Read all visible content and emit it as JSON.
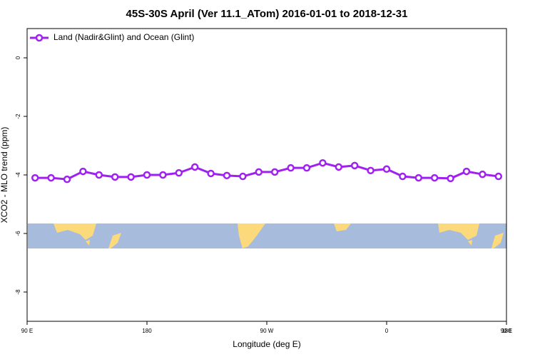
{
  "chart_data": {
    "type": "line",
    "title": "45S-30S April (Ver 11.1_ATom)   2016-01-01 to 2018-12-31",
    "x_label": "Longitude (deg E)",
    "y_label": "XCO2 - MLO trend (ppm)",
    "x": [
      96,
      108,
      120,
      132,
      144,
      156,
      168,
      180,
      192,
      204,
      216,
      228,
      240,
      252,
      264,
      276,
      288,
      300,
      312,
      324,
      336,
      348,
      360,
      372,
      384,
      396,
      408,
      420,
      432,
      444
    ],
    "series": [
      {
        "name": "Land (Nadir&Glint) and Ocean (Glint)",
        "color": "#a020f0",
        "values": [
          -4.1,
          -4.1,
          -4.15,
          -3.88,
          -4.0,
          -4.07,
          -4.07,
          -4.0,
          -4.0,
          -3.93,
          -3.73,
          -3.95,
          -4.02,
          -4.05,
          -3.9,
          -3.9,
          -3.76,
          -3.76,
          -3.59,
          -3.73,
          -3.68,
          -3.85,
          -3.8,
          -4.05,
          -4.1,
          -4.1,
          -4.12,
          -3.88,
          -3.98,
          -4.05
        ]
      }
    ],
    "xlim": [
      90,
      450
    ],
    "ylim": [
      -9,
      1
    ],
    "xticks": [
      {
        "value": 90,
        "label": "90 E"
      },
      {
        "value": 180,
        "label": "180"
      },
      {
        "value": 270,
        "label": "90 W"
      },
      {
        "value": 360,
        "label": "0"
      },
      {
        "value": 450,
        "label": "90 E"
      },
      {
        "value": 540,
        "label": "180"
      }
    ],
    "yticks": [
      0,
      -2,
      -4,
      -6,
      -8
    ],
    "legend": "top-left"
  }
}
